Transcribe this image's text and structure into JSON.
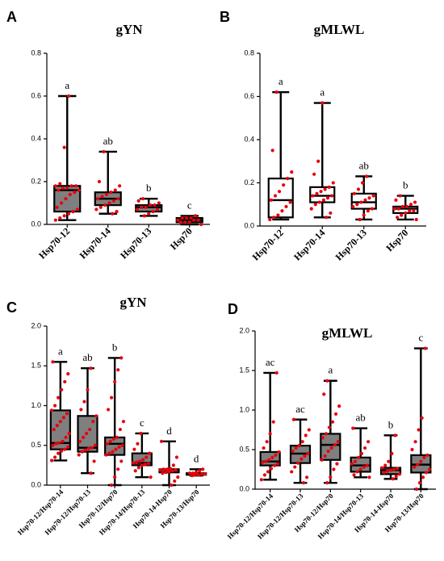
{
  "chart_data": [
    {
      "type": "box",
      "panel_label": "A",
      "title": "gYN",
      "ylim": [
        0,
        0.8
      ],
      "yticks": [
        "0.0",
        "0.2",
        "0.4",
        "0.6",
        "0.8"
      ],
      "box_color": "#7f7f7f",
      "point_color": "#e8000b",
      "categories": [
        "Hsp70-12",
        "Hsp70-14",
        "Hsp70-13",
        "Hsp70"
      ],
      "significance": [
        "a",
        "ab",
        "b",
        "c"
      ],
      "series": [
        {
          "category": "Hsp70-12",
          "min": 0.02,
          "q1": 0.06,
          "median": 0.16,
          "q3": 0.18,
          "max": 0.6,
          "points": [
            0.02,
            0.03,
            0.04,
            0.05,
            0.06,
            0.07,
            0.08,
            0.1,
            0.12,
            0.14,
            0.15,
            0.16,
            0.16,
            0.17,
            0.17,
            0.18,
            0.18,
            0.18,
            0.19,
            0.36,
            0.6
          ]
        },
        {
          "category": "Hsp70-14",
          "min": 0.05,
          "q1": 0.09,
          "median": 0.12,
          "q3": 0.15,
          "max": 0.34,
          "points": [
            0.05,
            0.06,
            0.07,
            0.08,
            0.09,
            0.1,
            0.11,
            0.12,
            0.12,
            0.13,
            0.14,
            0.15,
            0.16,
            0.18,
            0.2,
            0.34
          ]
        },
        {
          "category": "Hsp70-13",
          "min": 0.04,
          "q1": 0.06,
          "median": 0.08,
          "q3": 0.09,
          "max": 0.12,
          "points": [
            0.04,
            0.05,
            0.06,
            0.07,
            0.07,
            0.08,
            0.08,
            0.09,
            0.09,
            0.1,
            0.11,
            0.12
          ]
        },
        {
          "category": "Hsp70",
          "min": 0.0,
          "q1": 0.01,
          "median": 0.02,
          "q3": 0.03,
          "max": 0.04,
          "points": [
            0.0,
            0.01,
            0.01,
            0.01,
            0.02,
            0.02,
            0.02,
            0.03,
            0.03,
            0.03,
            0.04
          ]
        }
      ]
    },
    {
      "type": "box",
      "panel_label": "B",
      "title": "gMLWL",
      "ylim": [
        0,
        0.8
      ],
      "yticks": [
        "0.0",
        "0.2",
        "0.4",
        "0.6",
        "0.8"
      ],
      "box_color": "#ffffff",
      "point_color": "#e8000b",
      "categories": [
        "Hsp70-12",
        "Hsp70-14",
        "Hsp70-13",
        "Hsp70"
      ],
      "significance": [
        "a",
        "a",
        "ab",
        "b"
      ],
      "series": [
        {
          "category": "Hsp70-12",
          "min": 0.03,
          "q1": 0.04,
          "median": 0.12,
          "q3": 0.22,
          "max": 0.62,
          "points": [
            0.03,
            0.04,
            0.05,
            0.07,
            0.09,
            0.11,
            0.12,
            0.14,
            0.16,
            0.19,
            0.22,
            0.25,
            0.35,
            0.62
          ]
        },
        {
          "category": "Hsp70-14",
          "min": 0.04,
          "q1": 0.11,
          "median": 0.14,
          "q3": 0.18,
          "max": 0.57,
          "points": [
            0.04,
            0.06,
            0.08,
            0.1,
            0.11,
            0.12,
            0.13,
            0.14,
            0.14,
            0.15,
            0.16,
            0.17,
            0.18,
            0.2,
            0.24,
            0.3,
            0.57
          ]
        },
        {
          "category": "Hsp70-13",
          "min": 0.03,
          "q1": 0.08,
          "median": 0.11,
          "q3": 0.15,
          "max": 0.23,
          "points": [
            0.03,
            0.05,
            0.07,
            0.08,
            0.09,
            0.1,
            0.11,
            0.12,
            0.13,
            0.14,
            0.15,
            0.17,
            0.2,
            0.23
          ]
        },
        {
          "category": "Hsp70",
          "min": 0.03,
          "q1": 0.06,
          "median": 0.08,
          "q3": 0.09,
          "max": 0.14,
          "points": [
            0.03,
            0.04,
            0.05,
            0.06,
            0.07,
            0.07,
            0.08,
            0.08,
            0.09,
            0.09,
            0.1,
            0.11,
            0.12,
            0.14
          ]
        }
      ]
    },
    {
      "type": "box",
      "panel_label": "C",
      "title": "gYN",
      "ylim": [
        0,
        2.0
      ],
      "yticks": [
        "0.0",
        "0.5",
        "1.0",
        "1.5",
        "2.0"
      ],
      "box_color": "#7f7f7f",
      "point_color": "#e8000b",
      "categories": [
        "Hsp70-12/Hsp70-14",
        "Hsp70-12/Hsp70-13",
        "Hsp70-12/Hsp70",
        "Hsp70-14/Hsp70-13",
        "Hsp70-14-Hsp70",
        "Hsp70-13/Hsp70"
      ],
      "significance": [
        "a",
        "ab",
        "b",
        "c",
        "d",
        "d"
      ],
      "series": [
        {
          "category": "Hsp70-12/Hsp70-14",
          "min": 0.31,
          "q1": 0.45,
          "median": 0.53,
          "q3": 0.94,
          "max": 1.55,
          "points": [
            0.31,
            0.35,
            0.4,
            0.43,
            0.45,
            0.48,
            0.5,
            0.52,
            0.53,
            0.55,
            0.6,
            0.65,
            0.7,
            0.75,
            0.8,
            0.85,
            0.9,
            0.94,
            1.0,
            1.1,
            1.2,
            1.3,
            1.4,
            1.55
          ]
        },
        {
          "category": "Hsp70-12/Hsp70-13",
          "min": 0.15,
          "q1": 0.42,
          "median": 0.47,
          "q3": 0.87,
          "max": 1.47,
          "points": [
            0.15,
            0.3,
            0.38,
            0.42,
            0.44,
            0.46,
            0.47,
            0.5,
            0.55,
            0.6,
            0.65,
            0.7,
            0.8,
            0.87,
            0.95,
            1.05,
            1.2,
            1.47
          ]
        },
        {
          "category": "Hsp70-12/Hsp70",
          "min": 0.0,
          "q1": 0.38,
          "median": 0.52,
          "q3": 0.6,
          "max": 1.6,
          "points": [
            0.0,
            0.1,
            0.2,
            0.3,
            0.38,
            0.4,
            0.42,
            0.45,
            0.48,
            0.5,
            0.52,
            0.55,
            0.58,
            0.6,
            0.7,
            0.8,
            0.95,
            1.1,
            1.3,
            1.45,
            1.6
          ]
        },
        {
          "category": "Hsp70-14/Hsp70-13",
          "min": 0.1,
          "q1": 0.25,
          "median": 0.28,
          "q3": 0.4,
          "max": 0.65,
          "points": [
            0.1,
            0.18,
            0.22,
            0.25,
            0.26,
            0.27,
            0.28,
            0.29,
            0.3,
            0.32,
            0.35,
            0.4,
            0.45,
            0.52,
            0.65
          ]
        },
        {
          "category": "Hsp70-14-Hsp70",
          "min": 0.0,
          "q1": 0.16,
          "median": 0.19,
          "q3": 0.2,
          "max": 0.55,
          "points": [
            0.0,
            0.05,
            0.1,
            0.15,
            0.16,
            0.17,
            0.18,
            0.19,
            0.19,
            0.2,
            0.2,
            0.21,
            0.25,
            0.35,
            0.55
          ]
        },
        {
          "category": "Hsp70-13/Hsp70",
          "min": 0.12,
          "q1": 0.13,
          "median": 0.14,
          "q3": 0.15,
          "max": 0.2,
          "points": [
            0.12,
            0.13,
            0.13,
            0.14,
            0.14,
            0.15,
            0.15,
            0.16,
            0.18,
            0.2
          ]
        }
      ]
    },
    {
      "type": "box",
      "panel_label": "D",
      "title": "gMLWL",
      "ylim": [
        0,
        2.0
      ],
      "yticks": [
        "0.0",
        "0.5",
        "1.0",
        "1.5",
        "2.0"
      ],
      "box_color": "#7f7f7f",
      "point_color": "#e8000b",
      "categories": [
        "Hsp70-12/Hsp70-14",
        "Hsp70-12/Hsp70-13",
        "Hsp70-12/Hsp70",
        "Hsp70-14/Hsp70-13",
        "Hsp70-14-Hsp70",
        "Hsp70-13/Hsp70"
      ],
      "significance": [
        "ac",
        "ac",
        "a",
        "ab",
        "b",
        "c"
      ],
      "series": [
        {
          "category": "Hsp70-12/Hsp70-14",
          "min": 0.12,
          "q1": 0.3,
          "median": 0.35,
          "q3": 0.47,
          "max": 1.47,
          "points": [
            0.12,
            0.18,
            0.22,
            0.26,
            0.3,
            0.32,
            0.34,
            0.35,
            0.37,
            0.4,
            0.43,
            0.47,
            0.52,
            0.6,
            0.7,
            0.85,
            1.47
          ]
        },
        {
          "category": "Hsp70-12/Hsp70-13",
          "min": 0.08,
          "q1": 0.33,
          "median": 0.45,
          "q3": 0.55,
          "max": 0.88,
          "points": [
            0.08,
            0.15,
            0.22,
            0.28,
            0.33,
            0.38,
            0.42,
            0.45,
            0.48,
            0.52,
            0.55,
            0.6,
            0.68,
            0.75,
            0.88
          ]
        },
        {
          "category": "Hsp70-12/Hsp70",
          "min": 0.08,
          "q1": 0.37,
          "median": 0.56,
          "q3": 0.7,
          "max": 1.37,
          "points": [
            0.08,
            0.15,
            0.25,
            0.32,
            0.37,
            0.42,
            0.48,
            0.52,
            0.56,
            0.6,
            0.65,
            0.7,
            0.78,
            0.85,
            0.95,
            1.05,
            1.2,
            1.37
          ]
        },
        {
          "category": "Hsp70-14/Hsp70-13",
          "min": 0.15,
          "q1": 0.22,
          "median": 0.3,
          "q3": 0.4,
          "max": 0.77,
          "points": [
            0.15,
            0.18,
            0.22,
            0.25,
            0.28,
            0.3,
            0.32,
            0.35,
            0.4,
            0.45,
            0.52,
            0.6,
            0.77
          ]
        },
        {
          "category": "Hsp70-14-Hsp70",
          "min": 0.13,
          "q1": 0.19,
          "median": 0.24,
          "q3": 0.27,
          "max": 0.68,
          "points": [
            0.13,
            0.16,
            0.19,
            0.21,
            0.23,
            0.24,
            0.25,
            0.26,
            0.27,
            0.3,
            0.35,
            0.45,
            0.68
          ]
        },
        {
          "category": "Hsp70-13/Hsp70",
          "min": 0.0,
          "q1": 0.21,
          "median": 0.31,
          "q3": 0.43,
          "max": 1.78,
          "points": [
            0.0,
            0.08,
            0.15,
            0.21,
            0.25,
            0.28,
            0.31,
            0.35,
            0.4,
            0.43,
            0.5,
            0.6,
            0.75,
            0.9,
            1.78
          ]
        }
      ]
    }
  ]
}
